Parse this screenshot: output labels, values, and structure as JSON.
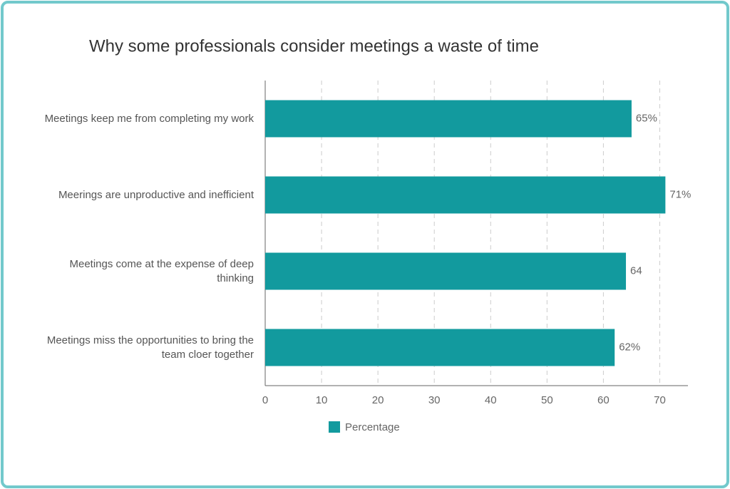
{
  "chart_data": {
    "type": "hbar",
    "title": "Why some professionals consider meetings a waste of time",
    "categories": [
      "Meetings keep me from completing my work",
      "Meerings are unproductive and inefficient",
      "Meetings come at the expense of deep thinking",
      "Meetings miss the opportunities to bring the team cloer together"
    ],
    "series": [
      {
        "name": "Percentage",
        "color": "#129a9e",
        "values": [
          65,
          71,
          64,
          62
        ],
        "value_labels": [
          "65%",
          "71%",
          "64",
          "62%"
        ]
      }
    ],
    "xlim": [
      0,
      75
    ],
    "xticks": [
      0,
      10,
      20,
      30,
      40,
      50,
      60,
      70
    ],
    "grid": true,
    "legend": "bottom"
  }
}
